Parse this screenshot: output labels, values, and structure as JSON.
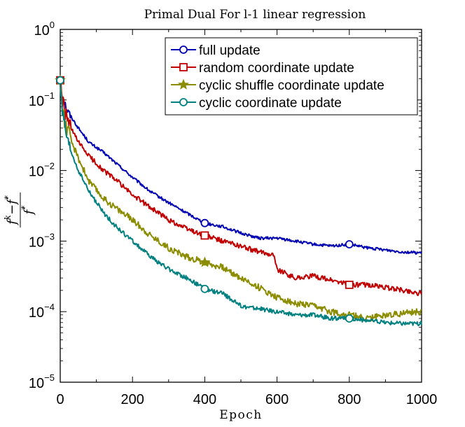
{
  "chart_data": {
    "type": "line",
    "title": "Primal Dual For l-1 linear regression",
    "xlabel": "Epoch",
    "ylabel": "(f^k − f*) / f*",
    "ylabel_parts": {
      "num_f": "f",
      "num_k": "k",
      "num_minus": "−",
      "num_f2": "f",
      "num_star": "*",
      "den_f": "f",
      "den_star": "*"
    },
    "xlim": [
      0,
      1000
    ],
    "ylim_log10": [
      -5,
      0
    ],
    "yscale": "log",
    "x_ticks": [
      0,
      200,
      400,
      600,
      800,
      1000
    ],
    "x_tick_labels": [
      "0",
      "200",
      "400",
      "600",
      "800",
      "1000"
    ],
    "y_ticks_exp": [
      0,
      -1,
      -2,
      -3,
      -4,
      -5
    ],
    "y_tick_base": "10",
    "y_tick_exps": [
      "0",
      "−1",
      "−2",
      "−3",
      "−4",
      "−5"
    ],
    "legend_position": "top-right",
    "series": [
      {
        "name": "full update",
        "color": "#0000b3",
        "marker": "circle",
        "noise": 0.02,
        "anchors": [
          [
            0,
            0.19
          ],
          [
            5,
            0.12
          ],
          [
            20,
            0.07
          ],
          [
            50,
            0.04
          ],
          [
            80,
            0.025
          ],
          [
            120,
            0.018
          ],
          [
            160,
            0.012
          ],
          [
            200,
            0.008
          ],
          [
            250,
            0.005
          ],
          [
            300,
            0.0035
          ],
          [
            350,
            0.0025
          ],
          [
            400,
            0.0018
          ],
          [
            450,
            0.0016
          ],
          [
            500,
            0.0013
          ],
          [
            550,
            0.0011
          ],
          [
            600,
            0.0011
          ],
          [
            650,
            0.001
          ],
          [
            700,
            0.0009
          ],
          [
            750,
            0.00085
          ],
          [
            800,
            0.0009
          ],
          [
            850,
            0.0008
          ],
          [
            900,
            0.00075
          ],
          [
            950,
            0.0007
          ],
          [
            1000,
            0.00068
          ]
        ],
        "markers_x": [
          0,
          400,
          800
        ]
      },
      {
        "name": "random coordinate update",
        "color": "#c00000",
        "marker": "square",
        "noise": 0.035,
        "anchors": [
          [
            0,
            0.19
          ],
          [
            5,
            0.1
          ],
          [
            20,
            0.05
          ],
          [
            50,
            0.025
          ],
          [
            80,
            0.016
          ],
          [
            120,
            0.01
          ],
          [
            160,
            0.007
          ],
          [
            200,
            0.0045
          ],
          [
            250,
            0.003
          ],
          [
            300,
            0.002
          ],
          [
            350,
            0.0015
          ],
          [
            400,
            0.0012
          ],
          [
            450,
            0.001
          ],
          [
            500,
            0.00085
          ],
          [
            550,
            0.0007
          ],
          [
            590,
            0.00065
          ],
          [
            600,
            0.0004
          ],
          [
            650,
            0.0003
          ],
          [
            700,
            0.00032
          ],
          [
            750,
            0.00028
          ],
          [
            800,
            0.00024
          ],
          [
            850,
            0.00024
          ],
          [
            900,
            0.00022
          ],
          [
            950,
            0.0002
          ],
          [
            1000,
            0.00018
          ]
        ],
        "markers_x": [
          0,
          400,
          800
        ]
      },
      {
        "name": "cyclic shuffle coordinate update",
        "color": "#8c8c00",
        "marker": "star",
        "noise": 0.045,
        "anchors": [
          [
            0,
            0.19
          ],
          [
            5,
            0.08
          ],
          [
            20,
            0.035
          ],
          [
            50,
            0.015
          ],
          [
            80,
            0.007
          ],
          [
            120,
            0.004
          ],
          [
            160,
            0.0028
          ],
          [
            200,
            0.002
          ],
          [
            250,
            0.0012
          ],
          [
            300,
            0.0008
          ],
          [
            350,
            0.0006
          ],
          [
            400,
            0.0005
          ],
          [
            450,
            0.00042
          ],
          [
            500,
            0.0003
          ],
          [
            550,
            0.00022
          ],
          [
            600,
            0.00016
          ],
          [
            650,
            0.00013
          ],
          [
            700,
            0.00012
          ],
          [
            750,
            0.0001
          ],
          [
            800,
            9e-05
          ],
          [
            850,
            8e-05
          ],
          [
            900,
            9e-05
          ],
          [
            950,
            9.5e-05
          ],
          [
            1000,
            0.0001
          ]
        ],
        "markers_x": [
          0,
          400
        ]
      },
      {
        "name": "cyclic coordinate update",
        "color": "#008080",
        "marker": "circle",
        "noise": 0.03,
        "anchors": [
          [
            0,
            0.19
          ],
          [
            5,
            0.07
          ],
          [
            20,
            0.025
          ],
          [
            50,
            0.01
          ],
          [
            80,
            0.005
          ],
          [
            120,
            0.0025
          ],
          [
            160,
            0.0015
          ],
          [
            200,
            0.001
          ],
          [
            250,
            0.0006
          ],
          [
            300,
            0.0004
          ],
          [
            350,
            0.0003
          ],
          [
            400,
            0.00021
          ],
          [
            450,
            0.00018
          ],
          [
            500,
            0.00012
          ],
          [
            550,
            0.00011
          ],
          [
            600,
            0.0001
          ],
          [
            650,
            9e-05
          ],
          [
            700,
            9e-05
          ],
          [
            750,
            8e-05
          ],
          [
            800,
            8e-05
          ],
          [
            850,
            7.5e-05
          ],
          [
            900,
            7e-05
          ],
          [
            950,
            6.8e-05
          ],
          [
            1000,
            6.8e-05
          ]
        ],
        "markers_x": [
          0,
          400,
          800
        ]
      }
    ]
  }
}
